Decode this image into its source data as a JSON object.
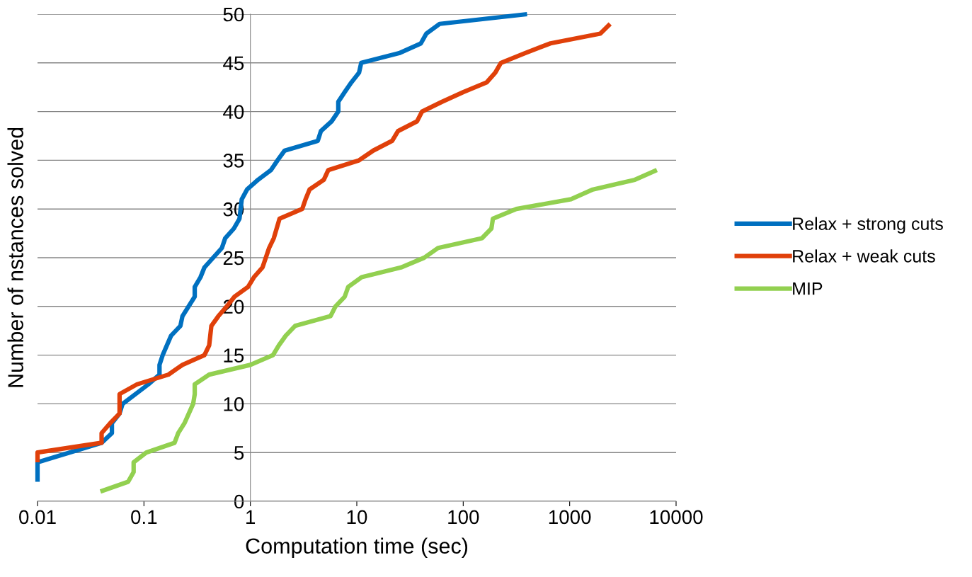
{
  "chart_data": {
    "type": "line",
    "xlabel": "Computation time (sec)",
    "ylabel": "Number of nstances solved",
    "log": "x",
    "xlim": [
      0.01,
      10000
    ],
    "xticks": [
      {
        "value": 0.01,
        "label": "0.01"
      },
      {
        "value": 0.1,
        "label": "0.1"
      },
      {
        "value": 1,
        "label": "1"
      },
      {
        "value": 10,
        "label": "10"
      },
      {
        "value": 100,
        "label": "100"
      },
      {
        "value": 1000,
        "label": "1000"
      },
      {
        "value": 10000,
        "label": "10000"
      }
    ],
    "ylim": [
      0,
      50
    ],
    "yticks": [
      0,
      5,
      10,
      15,
      20,
      25,
      30,
      35,
      40,
      45,
      50
    ],
    "grid": "y",
    "legend": "right",
    "marker": "none",
    "line_style": "solid",
    "series": [
      {
        "name": "Relax + strong cuts",
        "color": "#0070c0",
        "x": [
          0.01,
          0.01,
          0.04,
          0.05,
          0.05,
          0.059,
          0.063,
          0.11,
          0.14,
          0.14,
          0.15,
          0.18,
          0.22,
          0.23,
          0.3,
          0.3,
          0.34,
          0.37,
          0.54,
          0.58,
          0.7,
          0.79,
          0.83,
          0.93,
          1.18,
          1.56,
          1.8,
          2.1,
          4.3,
          4.6,
          5.8,
          6.7,
          6.7,
          7.7,
          8.9,
          10.5,
          11,
          25,
          40,
          45,
          60,
          398
        ],
        "values": [
          2,
          4,
          6,
          7,
          8,
          9,
          10,
          12,
          13,
          14,
          15,
          17,
          18,
          19,
          21,
          22,
          23,
          24,
          26,
          27,
          28,
          29,
          31,
          32,
          33,
          34,
          35,
          36,
          37,
          38,
          39,
          40,
          41,
          42,
          43,
          44,
          45,
          46,
          47,
          48,
          49,
          50
        ]
      },
      {
        "name": "Relax + weak cuts",
        "color": "#e0400a",
        "x": [
          0.01,
          0.01,
          0.04,
          0.04,
          0.048,
          0.059,
          0.059,
          0.086,
          0.17,
          0.23,
          0.37,
          0.41,
          0.43,
          0.5,
          0.6,
          0.71,
          0.95,
          1.08,
          1.3,
          1.5,
          1.66,
          1.88,
          3.07,
          3.3,
          3.6,
          4.9,
          5.4,
          10.5,
          14.3,
          21.5,
          24.4,
          36.8,
          41,
          63,
          100,
          166,
          200,
          226,
          380,
          660,
          1940,
          2400
        ],
        "values": [
          4,
          5,
          6,
          7,
          8,
          9,
          11,
          12,
          13,
          14,
          15,
          16,
          18,
          19,
          20,
          21,
          22,
          23,
          24,
          26,
          27,
          29,
          30,
          31,
          32,
          33,
          34,
          35,
          36,
          37,
          38,
          39,
          40,
          41,
          42,
          43,
          44,
          45,
          46,
          47,
          48,
          49
        ]
      },
      {
        "name": "MIP",
        "color": "#92d050",
        "x": [
          0.039,
          0.071,
          0.08,
          0.08,
          0.105,
          0.194,
          0.21,
          0.24,
          0.29,
          0.3,
          0.3,
          0.41,
          1.0,
          1.63,
          1.85,
          2.15,
          2.63,
          5.66,
          6.3,
          7.7,
          8.3,
          11.1,
          26,
          43,
          58,
          150,
          184,
          190,
          316,
          1030,
          1650,
          4100,
          6600
        ],
        "values": [
          1,
          2,
          3,
          4,
          5,
          6,
          7,
          8,
          10,
          11,
          12,
          13,
          14,
          15,
          16,
          17,
          18,
          19,
          20,
          21,
          22,
          23,
          24,
          25,
          26,
          27,
          28,
          29,
          30,
          31,
          32,
          33,
          34
        ]
      }
    ]
  }
}
